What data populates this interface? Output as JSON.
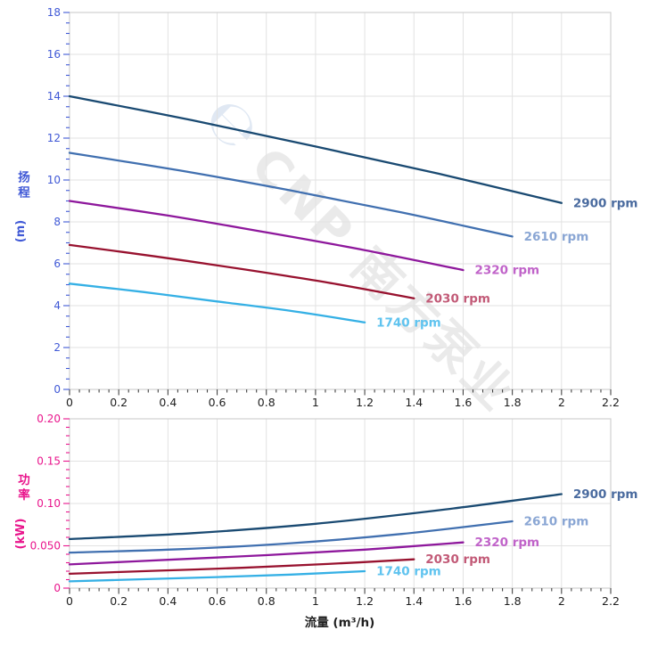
{
  "watermark": {
    "logo_glyph": "℮",
    "text": "CNP 南方泵业",
    "logo_color": "#c7d7eb",
    "text_color": "#dadada"
  },
  "xlabel": "流量 (m³/h)",
  "colors": {
    "grid": "#e2e2e2",
    "border": "#d0d0d0",
    "x_axis_text": "#1f1f1f"
  },
  "chart_data": [
    {
      "type": "line",
      "name": "head-chart",
      "ylabel": "扬程",
      "yunit": "(m)",
      "axis_color": "#4059d6",
      "xlim": [
        0,
        2.2
      ],
      "ylim": [
        0,
        18
      ],
      "xticks": {
        "major": 0.2,
        "minor": 0.04,
        "labels": [
          "0",
          "0.2",
          "0.4",
          "0.6",
          "0.8",
          "1",
          "1.2",
          "1.4",
          "1.6",
          "1.8",
          "2",
          "2.2"
        ]
      },
      "yticks": {
        "major": 2,
        "minor": 0.5,
        "labels": [
          "0",
          "2",
          "4",
          "6",
          "8",
          "10",
          "12",
          "14",
          "16",
          "18"
        ]
      },
      "grid": true,
      "legend_position": "at-line-end",
      "series": [
        {
          "name": "2900 rpm",
          "color": "#1a4a72",
          "label_color": "#4a6b9f",
          "points": [
            [
              0,
              14.0
            ],
            [
              0.5,
              12.85
            ],
            [
              1.0,
              11.6
            ],
            [
              1.5,
              10.3
            ],
            [
              2.0,
              8.9
            ]
          ]
        },
        {
          "name": "2610 rpm",
          "color": "#4170b0",
          "label_color": "#8aa6d4",
          "points": [
            [
              0,
              11.3
            ],
            [
              0.45,
              10.45
            ],
            [
              0.9,
              9.5
            ],
            [
              1.35,
              8.45
            ],
            [
              1.8,
              7.3
            ]
          ]
        },
        {
          "name": "2320 rpm",
          "color": "#8e189c",
          "label_color": "#c063c9",
          "points": [
            [
              0,
              9.0
            ],
            [
              0.4,
              8.3
            ],
            [
              0.8,
              7.5
            ],
            [
              1.2,
              6.65
            ],
            [
              1.6,
              5.7
            ]
          ]
        },
        {
          "name": "2030 rpm",
          "color": "#98122f",
          "label_color": "#c25a77",
          "points": [
            [
              0,
              6.9
            ],
            [
              0.35,
              6.35
            ],
            [
              0.7,
              5.75
            ],
            [
              1.05,
              5.1
            ],
            [
              1.4,
              4.35
            ]
          ]
        },
        {
          "name": "1740 rpm",
          "color": "#35b0e5",
          "label_color": "#5fc3ef",
          "points": [
            [
              0,
              5.05
            ],
            [
              0.3,
              4.65
            ],
            [
              0.6,
              4.2
            ],
            [
              0.9,
              3.75
            ],
            [
              1.2,
              3.2
            ]
          ]
        }
      ]
    },
    {
      "type": "line",
      "name": "power-chart",
      "ylabel": "功率",
      "yunit": "(kW)",
      "axis_color": "#e9158c",
      "xlim": [
        0,
        2.2
      ],
      "ylim": [
        0,
        0.2
      ],
      "xticks": {
        "major": 0.2,
        "minor": 0.04,
        "labels": [
          "0",
          "0.2",
          "0.4",
          "0.6",
          "0.8",
          "1",
          "1.2",
          "1.4",
          "1.6",
          "1.8",
          "2",
          "2.2"
        ]
      },
      "yticks": {
        "major": 0.05,
        "minor": 0.01,
        "labels": [
          "0",
          "0.050",
          "0.10",
          "0.15",
          "0.20"
        ]
      },
      "grid": true,
      "legend_position": "at-line-end",
      "series": [
        {
          "name": "2900 rpm",
          "color": "#1a4a72",
          "label_color": "#4a6b9f",
          "points": [
            [
              0,
              0.058
            ],
            [
              0.5,
              0.065
            ],
            [
              1.0,
              0.076
            ],
            [
              1.5,
              0.092
            ],
            [
              2.0,
              0.111
            ]
          ]
        },
        {
          "name": "2610 rpm",
          "color": "#4170b0",
          "label_color": "#8aa6d4",
          "points": [
            [
              0,
              0.042
            ],
            [
              0.45,
              0.046
            ],
            [
              0.9,
              0.053
            ],
            [
              1.35,
              0.064
            ],
            [
              1.8,
              0.079
            ]
          ]
        },
        {
          "name": "2320 rpm",
          "color": "#8e189c",
          "label_color": "#c063c9",
          "points": [
            [
              0,
              0.028
            ],
            [
              0.4,
              0.0335
            ],
            [
              0.8,
              0.039
            ],
            [
              1.2,
              0.0455
            ],
            [
              1.6,
              0.054
            ]
          ]
        },
        {
          "name": "2030 rpm",
          "color": "#98122f",
          "label_color": "#c25a77",
          "points": [
            [
              0,
              0.017
            ],
            [
              0.35,
              0.0205
            ],
            [
              0.7,
              0.024
            ],
            [
              1.05,
              0.0285
            ],
            [
              1.4,
              0.034
            ]
          ]
        },
        {
          "name": "1740 rpm",
          "color": "#35b0e5",
          "label_color": "#5fc3ef",
          "points": [
            [
              0,
              0.008
            ],
            [
              0.3,
              0.0105
            ],
            [
              0.6,
              0.013
            ],
            [
              0.9,
              0.016
            ],
            [
              1.2,
              0.02
            ]
          ]
        }
      ]
    }
  ]
}
